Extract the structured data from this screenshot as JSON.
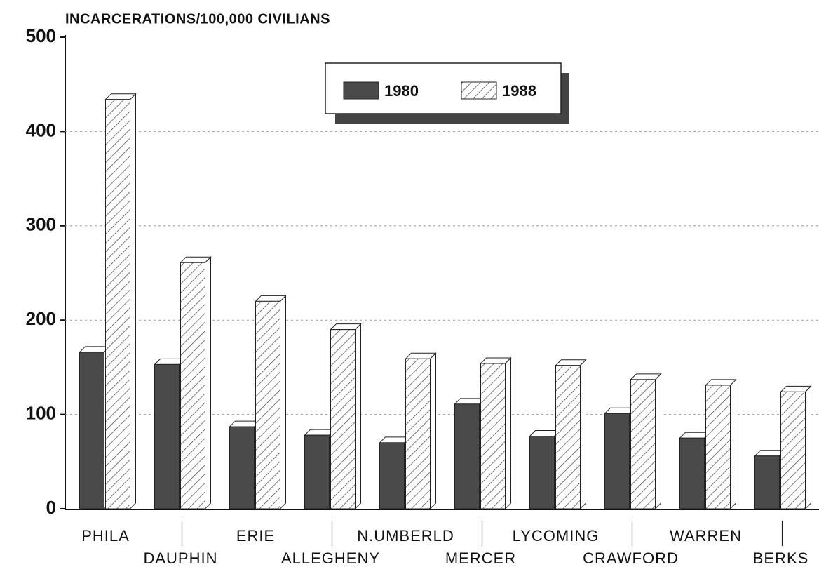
{
  "chart_data": {
    "type": "bar",
    "title": "INCARCERATIONS/100,000 CIVILIANS",
    "categories": [
      "PHILA",
      "DAUPHIN",
      "ERIE",
      "ALLEGHENY",
      "N.UMBERLD",
      "MERCER",
      "LYCOMING",
      "CRAWFORD",
      "WARREN",
      "BERKS"
    ],
    "series": [
      {
        "name": "1980",
        "color": "#4a4a4a",
        "values": [
          166,
          153,
          87,
          78,
          70,
          111,
          77,
          101,
          75,
          56
        ]
      },
      {
        "name": "1988",
        "color": "#ffffff",
        "values": [
          434,
          261,
          220,
          190,
          159,
          154,
          152,
          137,
          131,
          124
        ]
      }
    ],
    "ylim": [
      0,
      500
    ],
    "yticks": [
      0,
      100,
      200,
      300,
      400,
      500
    ],
    "grid": true
  }
}
